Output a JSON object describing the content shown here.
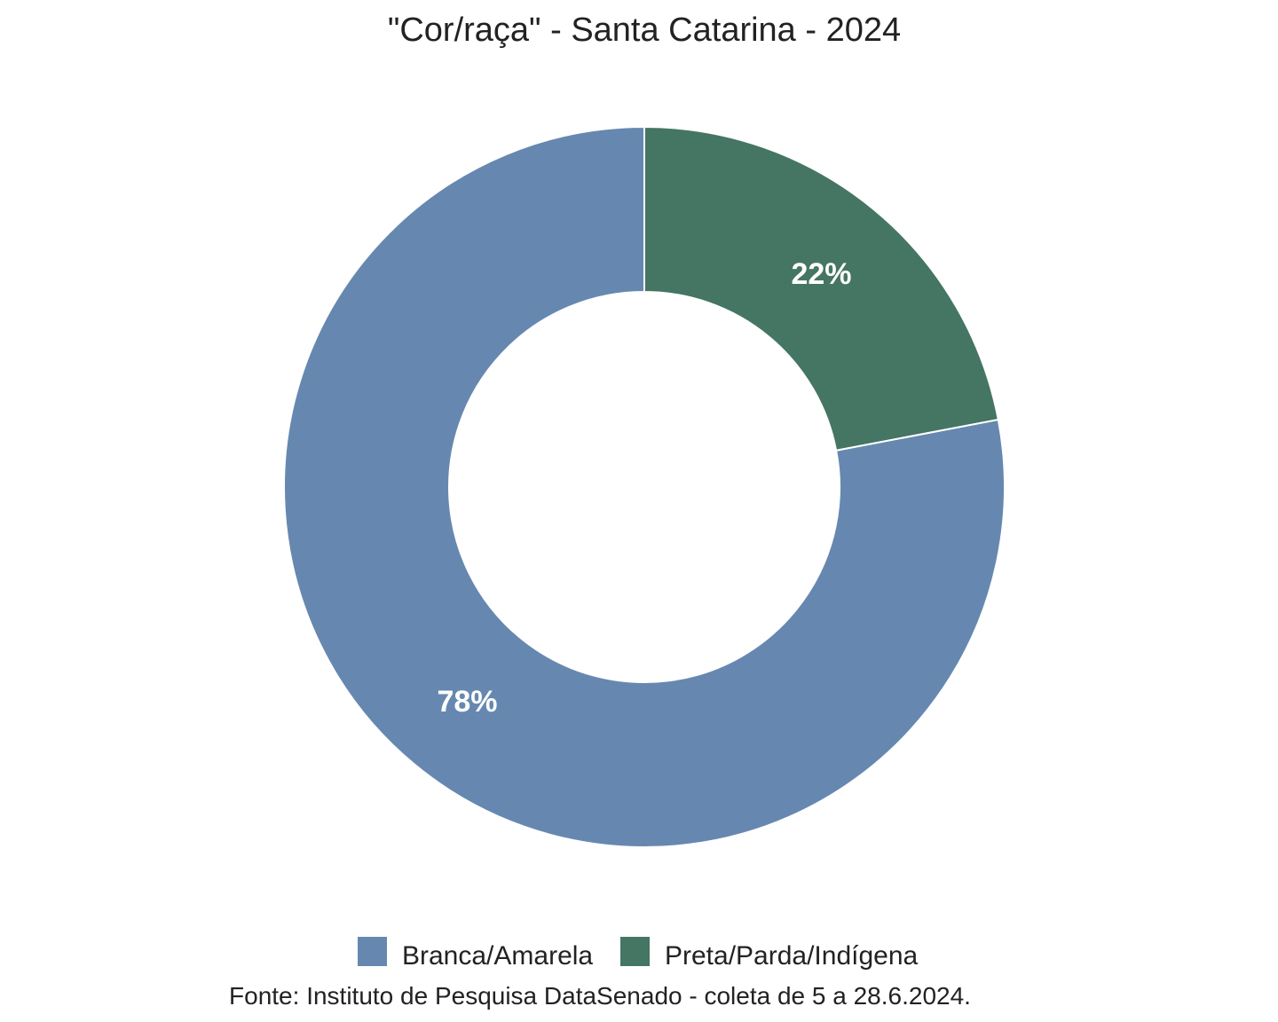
{
  "chart_data": {
    "type": "pie",
    "donut": true,
    "title": "\"Cor/raça\" - Santa Catarina - 2024",
    "slices": [
      {
        "name": "Branca/Amarela",
        "value": 78,
        "label": "78%",
        "color": "#6688b0"
      },
      {
        "name": "Preta/Parda/Indígena",
        "value": 22,
        "label": "22%",
        "color": "#457563"
      }
    ],
    "legend_position": "bottom",
    "source": "Fonte: Instituto de Pesquisa DataSenado - coleta de 5 a 28.6.2024."
  }
}
